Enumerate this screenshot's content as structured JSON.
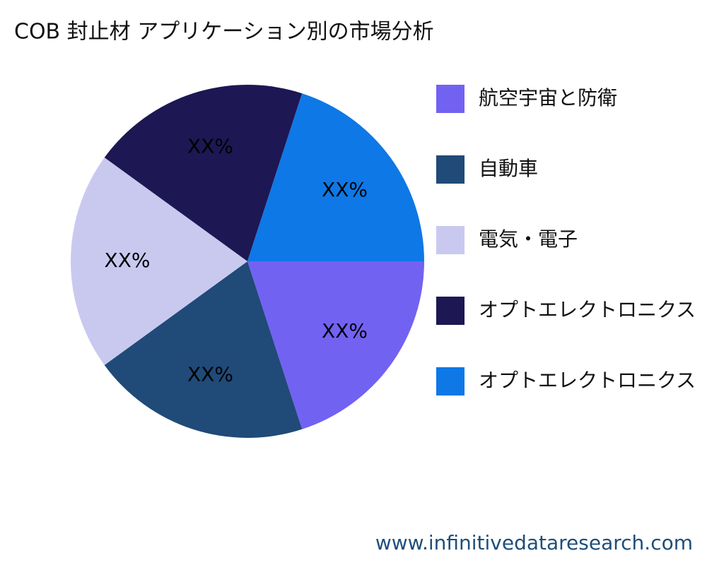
{
  "chart_data": {
    "type": "pie",
    "title": "COB 封止材 アプリケーション別の市場分析",
    "categories": [
      "航空宇宙と防衛",
      "自動車",
      "電気・電子",
      "オプトエレクトロニクス",
      "オプトエレクトロニクス"
    ],
    "values": [
      20,
      20,
      20,
      20,
      20
    ],
    "value_labels": [
      "XX%",
      "XX%",
      "XX%",
      "XX%",
      "XX%"
    ],
    "colors": [
      "#7262f2",
      "#204a78",
      "#c9c9f0",
      "#1d1753",
      "#0e78e6"
    ],
    "source": "www.infinitivedataresearch.com"
  }
}
